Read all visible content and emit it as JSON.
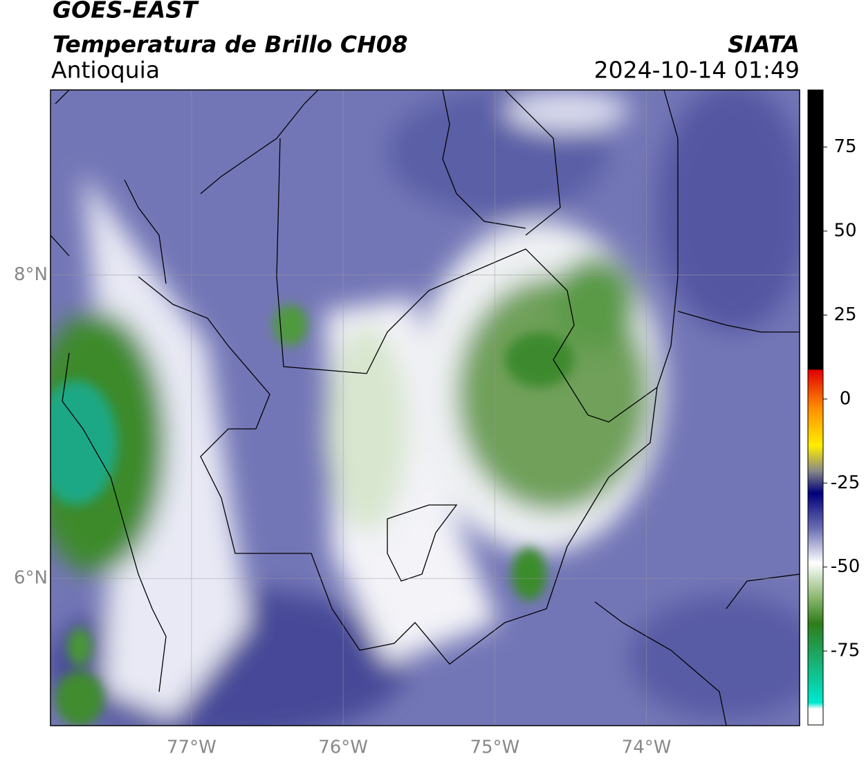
{
  "header": {
    "satellite": "GOES-EAST",
    "title": "Temperatura de Brillo CH08",
    "region": "Antioquia",
    "source": "SIATA",
    "datetime": "2024-10-14 01:49"
  },
  "chart_data": {
    "type": "map",
    "xlim": [
      -77.93,
      -72.99
    ],
    "ylim": [
      5.03,
      9.22
    ],
    "xticks": [
      {
        "value": -77,
        "label": "77°W"
      },
      {
        "value": -76,
        "label": "76°W"
      },
      {
        "value": -75,
        "label": "75°W"
      },
      {
        "value": -74,
        "label": "74°W"
      }
    ],
    "yticks": [
      {
        "value": 8,
        "label": "8°N"
      },
      {
        "value": 6,
        "label": "6°N"
      }
    ],
    "grid": true,
    "colorbar": {
      "lim": [
        -97,
        92
      ],
      "ticks": [
        75,
        50,
        25,
        0,
        -25,
        -50,
        -75
      ]
    }
  }
}
